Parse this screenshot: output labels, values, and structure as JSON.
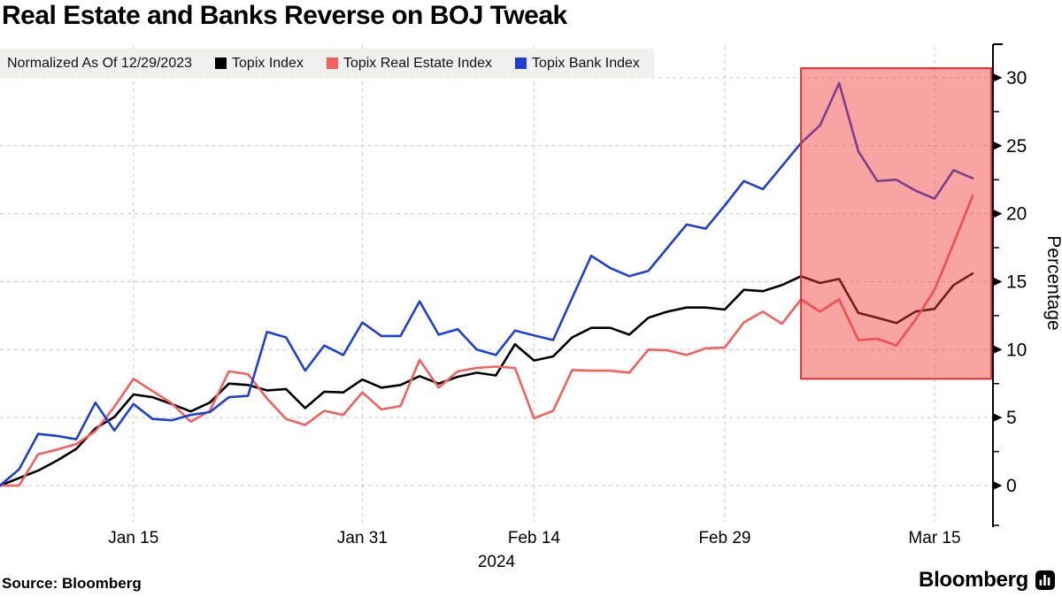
{
  "title": "Real Estate and Banks Reverse on BOJ Tweak",
  "source": "Source: Bloomberg",
  "brand": "Bloomberg",
  "chart_data": {
    "type": "line",
    "legend_note": "Normalized As Of 12/29/2023",
    "ylabel": "Percentage",
    "x_axis_year": "2024",
    "x_unit": "trading days from 12/29/2023",
    "x": [
      0,
      1,
      2,
      3,
      4,
      5,
      6,
      7,
      8,
      9,
      10,
      11,
      12,
      13,
      14,
      15,
      16,
      17,
      18,
      19,
      20,
      21,
      22,
      23,
      24,
      25,
      26,
      27,
      28,
      29,
      30,
      31,
      32,
      33,
      34,
      35,
      36,
      37,
      38,
      39,
      40,
      41,
      42,
      43,
      44,
      45,
      46,
      47,
      48,
      49,
      50,
      51
    ],
    "xticks": [
      {
        "index": 7,
        "label": "Jan 15"
      },
      {
        "index": 19,
        "label": "Jan 31"
      },
      {
        "index": 28,
        "label": "Feb 14"
      },
      {
        "index": 38,
        "label": "Feb 29"
      },
      {
        "index": 49,
        "label": "Mar 15"
      }
    ],
    "yticks": [
      0,
      5,
      10,
      15,
      20,
      25,
      30
    ],
    "ylim": [
      -3,
      32.5
    ],
    "grid": true,
    "legend_position": "top",
    "series": [
      {
        "name": "Topix Index",
        "color": "#000000",
        "values": [
          0,
          0.55,
          1.1,
          1.85,
          2.7,
          4.2,
          5.05,
          6.7,
          6.5,
          6.0,
          5.45,
          6.1,
          7.5,
          7.4,
          7.0,
          7.1,
          5.7,
          6.9,
          6.85,
          7.8,
          7.2,
          7.4,
          8.05,
          7.5,
          8.0,
          8.3,
          8.1,
          10.4,
          9.2,
          9.5,
          10.9,
          11.6,
          11.6,
          11.1,
          12.35,
          12.8,
          13.1,
          13.1,
          12.95,
          14.4,
          14.3,
          14.75,
          15.4,
          14.9,
          15.2,
          12.7,
          12.35,
          11.95,
          12.8,
          13.0,
          14.75,
          15.6
        ]
      },
      {
        "name": "Topix Real Estate Index",
        "color": "#f4605d",
        "values": [
          0,
          0.0,
          2.3,
          2.65,
          3.05,
          4.0,
          5.8,
          7.85,
          6.95,
          6.05,
          4.7,
          5.5,
          8.4,
          8.2,
          6.4,
          4.9,
          4.45,
          5.5,
          5.2,
          6.85,
          5.6,
          5.85,
          9.25,
          7.2,
          8.4,
          8.65,
          8.75,
          8.65,
          4.95,
          5.5,
          8.5,
          8.45,
          8.45,
          8.3,
          10.0,
          9.95,
          9.6,
          10.1,
          10.15,
          12.0,
          12.8,
          11.9,
          13.7,
          12.8,
          13.7,
          10.7,
          10.8,
          10.3,
          12.2,
          14.4,
          17.8,
          21.3
        ]
      },
      {
        "name": "Topix Bank Index",
        "color": "#1e3fd4",
        "values": [
          0,
          1.2,
          3.8,
          3.65,
          3.4,
          6.1,
          4.05,
          6.0,
          4.9,
          4.8,
          5.2,
          5.4,
          6.5,
          6.6,
          11.3,
          10.9,
          8.45,
          10.3,
          9.6,
          12.0,
          11.0,
          11.0,
          13.55,
          11.1,
          11.5,
          10.0,
          9.6,
          11.4,
          11.05,
          10.7,
          13.8,
          16.9,
          16.0,
          15.4,
          15.8,
          17.5,
          19.2,
          18.9,
          20.6,
          22.4,
          21.8,
          23.5,
          25.2,
          26.5,
          29.6,
          24.6,
          22.4,
          22.5,
          21.7,
          21.1,
          23.2,
          22.6
        ]
      }
    ],
    "highlight": {
      "start_index": 42,
      "y_top": 30.7,
      "y_bottom": 7.85,
      "fill": "rgba(238,62,60,0.47)",
      "stroke": "#e0312e"
    }
  }
}
